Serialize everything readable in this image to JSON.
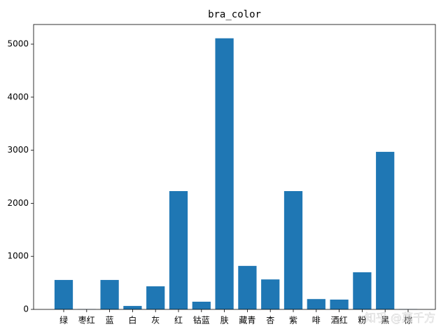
{
  "chart_data": {
    "type": "bar",
    "title": "bra_color",
    "categories": [
      "绿",
      "枣红",
      "蓝",
      "白",
      "灰",
      "红",
      "钴蓝",
      "肤",
      "藏青",
      "杏",
      "紫",
      "啡",
      "酒红",
      "粉",
      "黑",
      "棕"
    ],
    "values": [
      555,
      5,
      555,
      65,
      435,
      2230,
      145,
      5110,
      820,
      565,
      2230,
      195,
      185,
      700,
      2970,
      5
    ],
    "color": "#1f77b4",
    "ylim": [
      0,
      5370
    ],
    "yticks": [
      0,
      1000,
      2000,
      3000,
      4000,
      5000
    ],
    "watermark": "知乎 @莫千方"
  }
}
